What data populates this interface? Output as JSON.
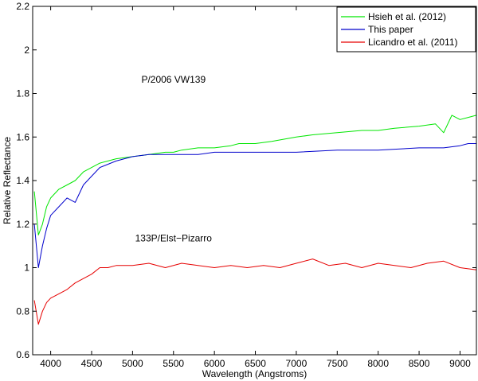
{
  "chart_data": {
    "type": "line",
    "title": "",
    "xlabel": "Wavelength (Angstroms)",
    "ylabel": "Relative Reflectance",
    "xlim": [
      3780,
      9200
    ],
    "ylim": [
      0.6,
      2.2
    ],
    "xticks": [
      4000,
      4500,
      5000,
      5500,
      6000,
      6500,
      7000,
      7500,
      8000,
      8500,
      9000
    ],
    "yticks": [
      0.6,
      0.8,
      1,
      1.2,
      1.4,
      1.6,
      1.8,
      2,
      2.2
    ],
    "ytick_labels": [
      "0.6",
      "0.8",
      "1",
      "1.2",
      "1.4",
      "1.6",
      "1.8",
      "2",
      "2.2"
    ],
    "legend_position": "top-right",
    "annotations": [
      {
        "text": "P/2006 VW139",
        "x": 5500,
        "y": 1.85
      },
      {
        "text": "133P/Elst−Pizarro",
        "x": 5500,
        "y": 1.12
      }
    ],
    "series": [
      {
        "name": "Hsieh et al. (2012)",
        "color": "#00e600",
        "x": [
          3800,
          3850,
          3900,
          3950,
          4000,
          4100,
          4200,
          4300,
          4400,
          4500,
          4600,
          4800,
          5000,
          5200,
          5400,
          5500,
          5600,
          5800,
          6000,
          6200,
          6300,
          6500,
          6700,
          7000,
          7200,
          7500,
          7800,
          8000,
          8200,
          8500,
          8700,
          8800,
          8900,
          9000,
          9100,
          9200
        ],
        "values": [
          1.35,
          1.15,
          1.2,
          1.28,
          1.32,
          1.36,
          1.38,
          1.4,
          1.44,
          1.46,
          1.48,
          1.5,
          1.51,
          1.52,
          1.53,
          1.53,
          1.54,
          1.55,
          1.55,
          1.56,
          1.57,
          1.57,
          1.58,
          1.6,
          1.61,
          1.62,
          1.63,
          1.63,
          1.64,
          1.65,
          1.66,
          1.62,
          1.7,
          1.68,
          1.69,
          1.7
        ]
      },
      {
        "name": "This paper",
        "color": "#0000cc",
        "x": [
          3800,
          3850,
          3900,
          3950,
          4000,
          4100,
          4200,
          4300,
          4400,
          4500,
          4600,
          4800,
          5000,
          5200,
          5500,
          5800,
          6000,
          6300,
          6500,
          7000,
          7500,
          8000,
          8500,
          8800,
          9000,
          9100,
          9200
        ],
        "values": [
          1.2,
          1.0,
          1.1,
          1.18,
          1.24,
          1.28,
          1.32,
          1.3,
          1.38,
          1.42,
          1.46,
          1.49,
          1.51,
          1.52,
          1.52,
          1.52,
          1.53,
          1.53,
          1.53,
          1.53,
          1.54,
          1.54,
          1.55,
          1.55,
          1.56,
          1.57,
          1.57
        ]
      },
      {
        "name": "Licandro et al. (2011)",
        "color": "#e60000",
        "x": [
          3800,
          3850,
          3900,
          3950,
          4000,
          4100,
          4200,
          4300,
          4400,
          4500,
          4600,
          4700,
          4800,
          5000,
          5200,
          5400,
          5600,
          5800,
          6000,
          6200,
          6400,
          6600,
          6800,
          7000,
          7200,
          7400,
          7600,
          7800,
          8000,
          8200,
          8400,
          8600,
          8800,
          9000,
          9200
        ],
        "values": [
          0.85,
          0.74,
          0.8,
          0.84,
          0.86,
          0.88,
          0.9,
          0.93,
          0.95,
          0.97,
          1.0,
          1.0,
          1.01,
          1.01,
          1.02,
          1.0,
          1.02,
          1.01,
          1.0,
          1.01,
          1.0,
          1.01,
          1.0,
          1.02,
          1.04,
          1.01,
          1.02,
          1.0,
          1.02,
          1.01,
          1.0,
          1.02,
          1.03,
          1.0,
          0.99
        ]
      }
    ]
  }
}
